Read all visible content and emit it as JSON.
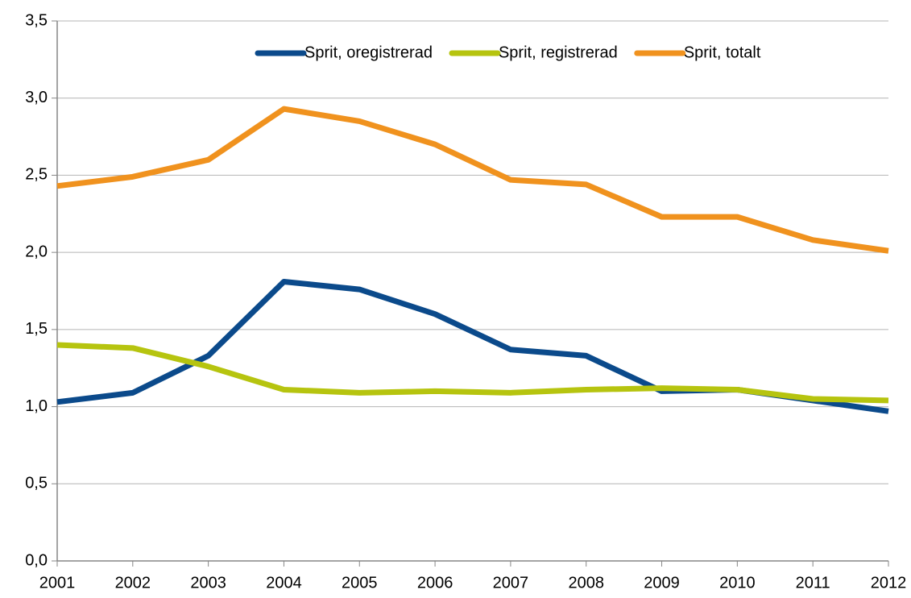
{
  "chart_data": {
    "type": "line",
    "categories": [
      "2001",
      "2002",
      "2003",
      "2004",
      "2005",
      "2006",
      "2007",
      "2008",
      "2009",
      "2010",
      "2011",
      "2012"
    ],
    "series": [
      {
        "name": "Sprit, oregistrerad",
        "color": "#0b4a8b",
        "values": [
          1.03,
          1.09,
          1.33,
          1.81,
          1.76,
          1.6,
          1.37,
          1.33,
          1.1,
          1.11,
          1.04,
          0.97
        ]
      },
      {
        "name": "Sprit, registrerad",
        "color": "#b6c40f",
        "values": [
          1.4,
          1.38,
          1.26,
          1.11,
          1.09,
          1.1,
          1.09,
          1.11,
          1.12,
          1.11,
          1.05,
          1.04
        ]
      },
      {
        "name": "Sprit, totalt",
        "color": "#f0921e",
        "values": [
          2.43,
          2.49,
          2.6,
          2.93,
          2.85,
          2.7,
          2.47,
          2.44,
          2.23,
          2.23,
          2.08,
          2.01
        ]
      }
    ],
    "ylim": [
      0,
      3.5
    ],
    "yticks": [
      {
        "value": 0,
        "label": "0,0"
      },
      {
        "value": 0.5,
        "label": "0,5"
      },
      {
        "value": 1,
        "label": "1,0"
      },
      {
        "value": 1.5,
        "label": "1,5"
      },
      {
        "value": 2,
        "label": "2,0"
      },
      {
        "value": 2.5,
        "label": "2,5"
      },
      {
        "value": 3,
        "label": "3,0"
      },
      {
        "value": 3.5,
        "label": "3,5"
      }
    ],
    "grid": true,
    "legend": "top"
  }
}
